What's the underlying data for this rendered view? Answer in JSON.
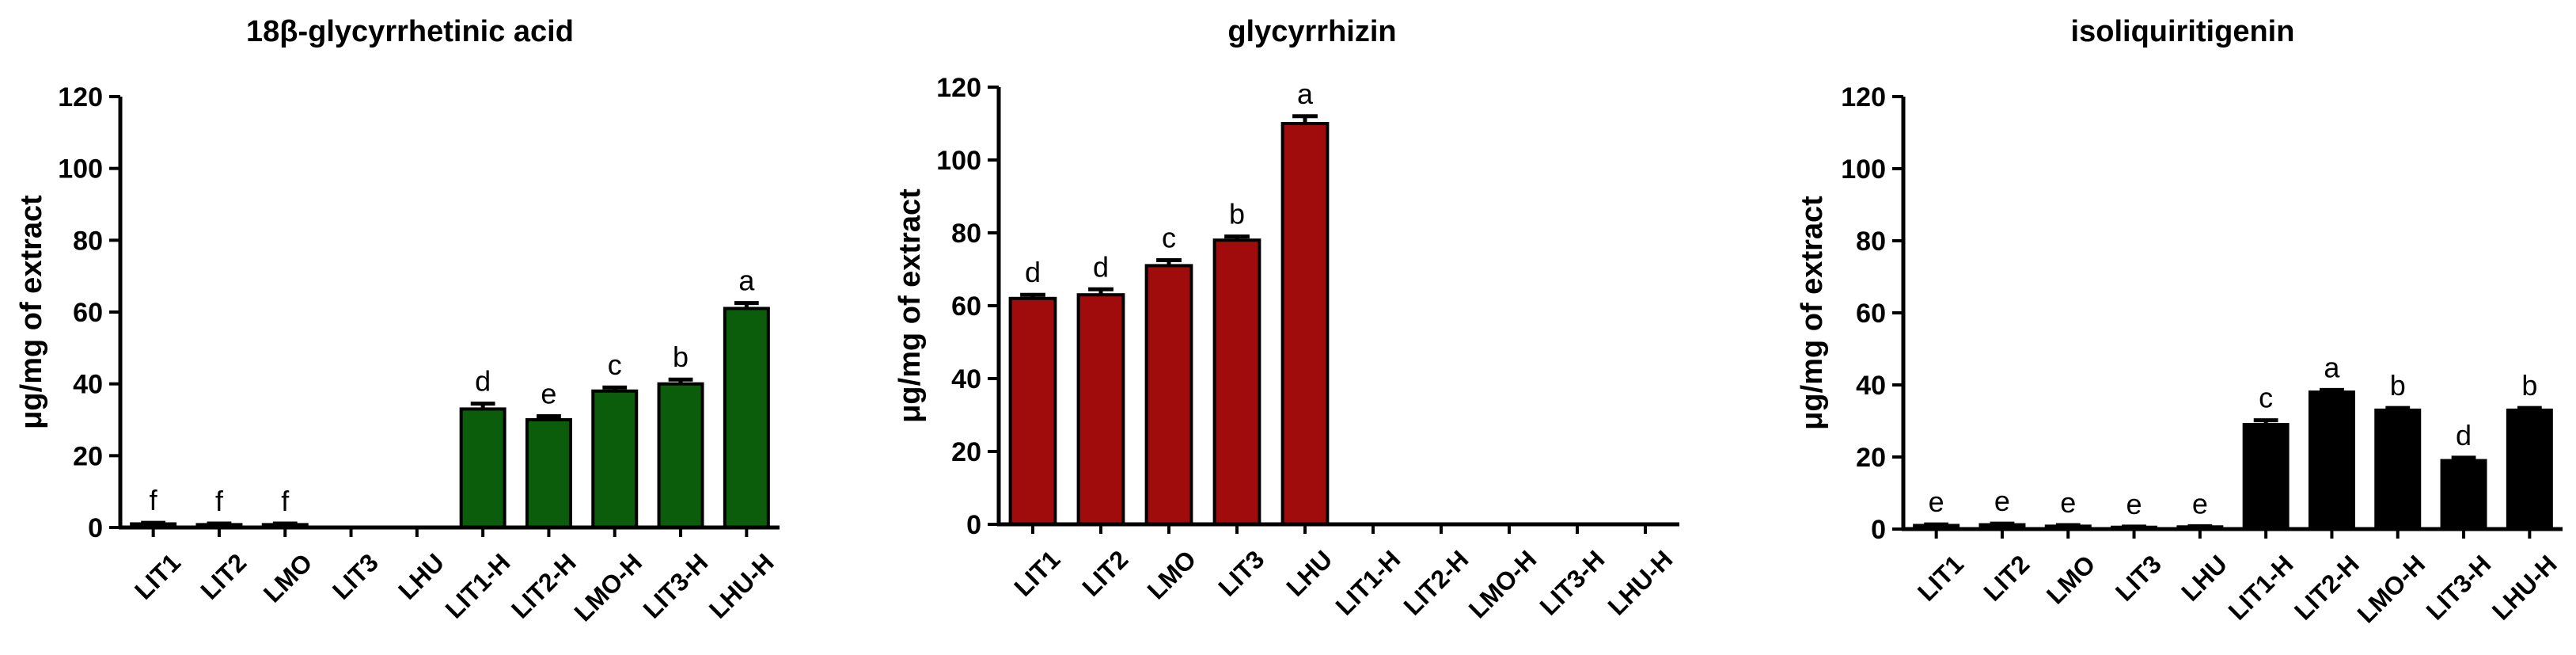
{
  "chart_data": [
    {
      "type": "bar",
      "title": "18β-glycyrrhetinic acid",
      "ylabel": "μg/mg of extract",
      "xlabel": "",
      "ylim": [
        0,
        120
      ],
      "yticks": [
        "0",
        "20",
        "40",
        "60",
        "80",
        "100",
        "120"
      ],
      "categories": [
        "LIT1",
        "LIT2",
        "LMO",
        "LIT3",
        "LHU",
        "LIT1-H",
        "LIT2-H",
        "LMO-H",
        "LIT3-H",
        "LHU-H"
      ],
      "values": [
        1,
        0.8,
        0.8,
        0,
        0,
        33,
        30,
        38,
        40,
        61
      ],
      "errors": [
        0.3,
        0.3,
        0.3,
        0,
        0,
        1.5,
        1,
        1,
        1.2,
        1.5
      ],
      "significance": [
        "f",
        "f",
        "f",
        "",
        "",
        "d",
        "e",
        "c",
        "b",
        "a"
      ],
      "color": "#0b5c0b",
      "grid": false
    },
    {
      "type": "bar",
      "title": "glycyrrhizin",
      "ylabel": "μg/mg of extract",
      "xlabel": "",
      "ylim": [
        0,
        120
      ],
      "yticks": [
        "0",
        "20",
        "40",
        "60",
        "80",
        "100",
        "120"
      ],
      "categories": [
        "LIT1",
        "LIT2",
        "LMO",
        "LIT3",
        "LHU",
        "LIT1-H",
        "LIT2-H",
        "LMO-H",
        "LIT3-H",
        "LHU-H"
      ],
      "values": [
        62,
        63,
        71,
        78,
        110,
        0,
        0,
        0,
        0,
        0
      ],
      "errors": [
        1,
        1.5,
        1.5,
        1,
        2,
        0,
        0,
        0,
        0,
        0
      ],
      "significance": [
        "d",
        "d",
        "c",
        "b",
        "a",
        "",
        "",
        "",
        "",
        ""
      ],
      "color": "#a00b0b",
      "grid": false
    },
    {
      "type": "bar",
      "title": "isoliquiritigenin",
      "ylabel": "μg/mg of extract",
      "xlabel": "",
      "ylim": [
        0,
        120
      ],
      "yticks": [
        "0",
        "20",
        "40",
        "60",
        "80",
        "100",
        "120"
      ],
      "categories": [
        "LIT1",
        "LIT2",
        "LMO",
        "LIT3",
        "LHU",
        "LIT1-H",
        "LIT2-H",
        "LMO-H",
        "LIT3-H",
        "LHU-H"
      ],
      "values": [
        1,
        1.2,
        0.8,
        0.5,
        0.6,
        29,
        38,
        33,
        19,
        33
      ],
      "errors": [
        0.3,
        0.3,
        0.3,
        0.2,
        0.2,
        1.2,
        0.6,
        0.6,
        0.8,
        0.6
      ],
      "significance": [
        "e",
        "e",
        "e",
        "e",
        "e",
        "c",
        "a",
        "b",
        "d",
        "b"
      ],
      "color": "#000000",
      "grid": false
    }
  ]
}
